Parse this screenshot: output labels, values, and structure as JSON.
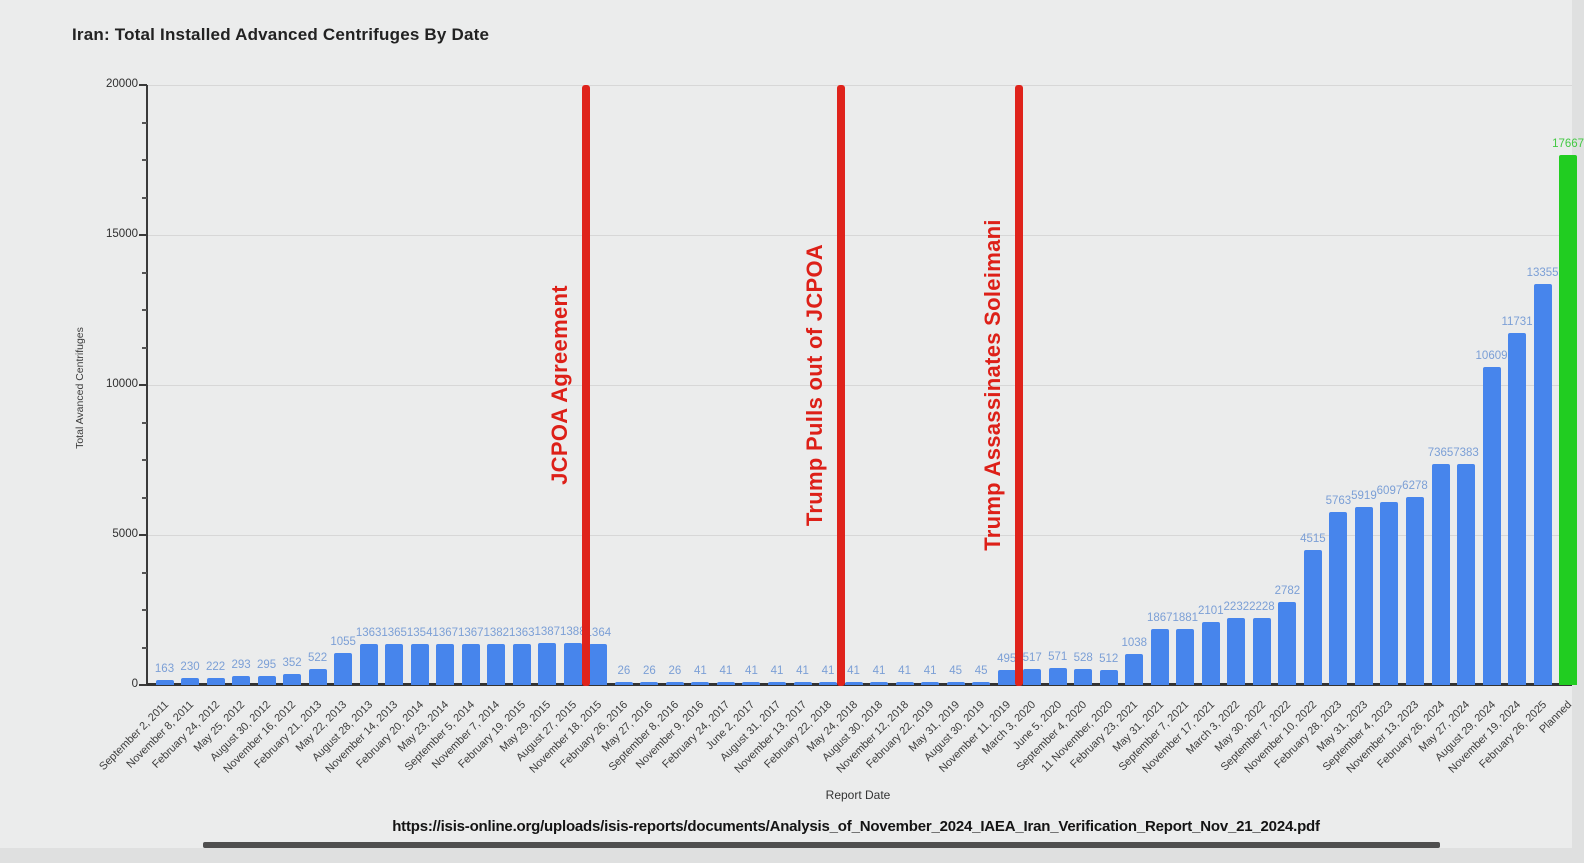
{
  "page": {
    "title": "Iran: Total Installed Advanced Centrifuges By Date",
    "source_url": "https://isis-online.org/uploads/isis-reports/documents/Analysis_of_November_2024_IAEA_Iran_Verification_Report_Nov_21_2024.pdf"
  },
  "chart_data": {
    "type": "bar",
    "title": "Iran: Total Installed Advanced Centrifuges By Date",
    "xlabel": "Report Date",
    "ylabel": "Total Avanced Centrifuges",
    "ylim": [
      0,
      20000
    ],
    "yticks": [
      0,
      5000,
      10000,
      15000,
      20000
    ],
    "ytick_minor_step": 1250,
    "grid": true,
    "legend": "none",
    "bar_color": "#4785ec",
    "planned_bar_color": "#21cd21",
    "value_label_color": "#7b9fd6",
    "event_color": "#df231b",
    "categories": [
      "September 2, 2011",
      "November 8, 2011",
      "February 24, 2012",
      "May 25, 2012",
      "August 30, 2012",
      "November 16, 2012",
      "February 21, 2013",
      "May 22, 2013",
      "August 28, 2013",
      "November 14, 2013",
      "February 20, 2014",
      "May 23, 2014",
      "September 5, 2014",
      "November 7, 2014",
      "February 19, 2015",
      "May 29, 2015",
      "August 27, 2015",
      "November 18, 2015",
      "February 26, 2016",
      "May 27, 2016",
      "September 8, 2016",
      "November 9, 2016",
      "February 24, 2017",
      "June 2, 2017",
      "August 31, 2017",
      "November 13, 2017",
      "February 22, 2018",
      "May 24, 2018",
      "August 30, 2018",
      "November 12, 2018",
      "February 22, 2019",
      "May 31, 2019",
      "August 30, 2019",
      "November 11, 2019",
      "March 3, 2020",
      "June 5, 2020",
      "September 4, 2020",
      "11 November, 2020",
      "February 23, 2021",
      "May 31, 2021",
      "September 7, 2021",
      "November 17, 2021",
      "March 3, 2022",
      "May 30, 2022",
      "September 7, 2022",
      "November 10, 2022",
      "February 28, 2023",
      "May 31, 2023",
      "September 4, 2023",
      "November 13, 2023",
      "February 26, 2024",
      "May 27, 2024",
      "August 29, 2024",
      "November 19, 2024",
      "February 26, 2025",
      "Planned"
    ],
    "values": [
      163,
      230,
      222,
      293,
      295,
      352,
      522,
      1055,
      1363,
      1365,
      1354,
      1367,
      1367,
      1382,
      1363,
      1387,
      1388,
      1364,
      26,
      26,
      26,
      41,
      41,
      41,
      41,
      41,
      41,
      41,
      41,
      41,
      41,
      45,
      45,
      495,
      517,
      571,
      528,
      512,
      1038,
      1867,
      1881,
      2101,
      2232,
      2228,
      2782,
      4515,
      5763,
      5919,
      6097,
      6278,
      7365,
      7383,
      10609,
      11731,
      13355,
      17667
    ],
    "planned_index": 55,
    "planned_label_clipped": true,
    "annotations": [
      {
        "label": "JCPOA Agreement",
        "between_index": [
          16,
          17
        ],
        "between": [
          "August 27, 2015",
          "November 18, 2015"
        ]
      },
      {
        "label": "Trump Pulls out of JCPOA",
        "between_index": [
          26,
          27
        ],
        "between": [
          "February 22, 2018",
          "May 24, 2018"
        ]
      },
      {
        "label": "Trump Assassinates Soleimani",
        "between_index": [
          33,
          34
        ],
        "between": [
          "November 11, 2019",
          "March 3, 2020"
        ]
      }
    ]
  }
}
